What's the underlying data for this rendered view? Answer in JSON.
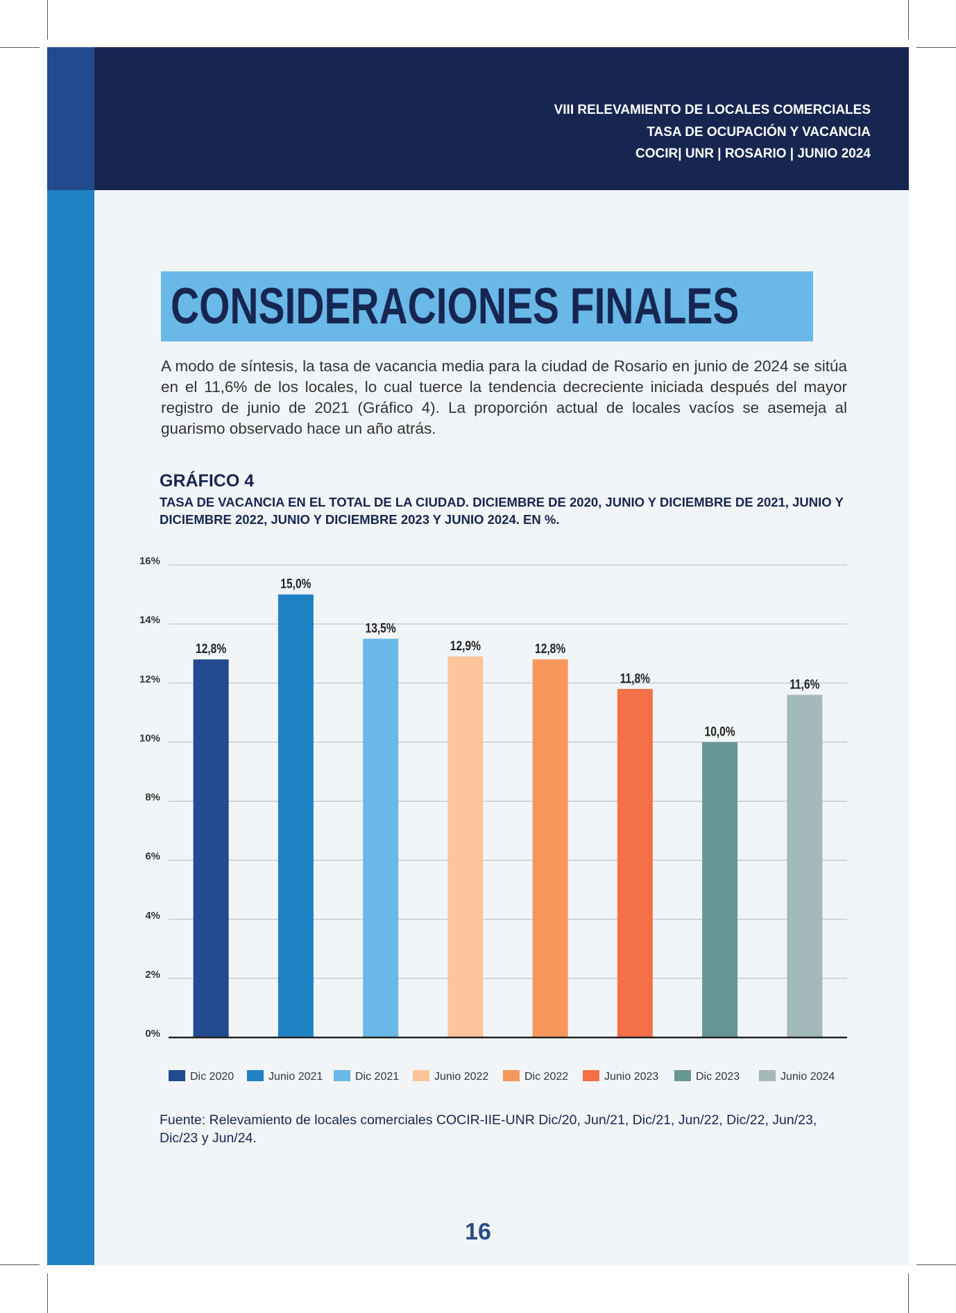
{
  "header": {
    "line1": "VIII RELEVAMIENTO DE LOCALES COMERCIALES",
    "line2": "TASA DE OCUPACIÓN Y VACANCIA",
    "line3": "COCIR| UNR | ROSARIO | JUNIO 2024"
  },
  "section_title": "CONSIDERACIONES FINALES",
  "intro_text": "A modo de síntesis, la tasa de vacancia media para la ciudad de Rosario en junio de 2024 se sitúa en el 11,6% de los locales, lo cual tuerce la tendencia decreciente iniciada después del mayor registro de junio de 2021 (Gráfico 4). La proporción actual de locales vacíos se asemeja al guarismo observado hace un año atrás.",
  "figure": {
    "label": "GRÁFICO 4",
    "subtitle": "TASA DE VACANCIA EN EL TOTAL DE LA CIUDAD. DICIEMBRE DE 2020, JUNIO Y DICIEMBRE DE 2021, JUNIO Y DICIEMBRE 2022, JUNIO Y DICIEMBRE 2023 Y JUNIO 2024. EN %."
  },
  "chart_data": {
    "type": "bar",
    "categories": [
      "Dic 2020",
      "Junio 2021",
      "Dic 2021",
      "Junio 2022",
      "Dic 2022",
      "Junio 2023",
      "Dic 2023",
      "Junio 2024"
    ],
    "values": [
      12.8,
      15.0,
      13.5,
      12.9,
      12.8,
      11.8,
      10.0,
      11.6
    ],
    "data_labels": [
      "12,8%",
      "15,0%",
      "13,5%",
      "12,9%",
      "12,8%",
      "11,8%",
      "10,0%",
      "11,6%"
    ],
    "colors": [
      "#224a8e",
      "#1f82c4",
      "#69b8e8",
      "#fec59c",
      "#f8975b",
      "#f47047",
      "#679795",
      "#a3b9ba"
    ],
    "ylim": [
      0,
      16
    ],
    "yticks": [
      0,
      2,
      4,
      6,
      8,
      10,
      12,
      14,
      16
    ],
    "ytick_labels": [
      "0%",
      "2%",
      "4%",
      "6%",
      "8%",
      "10%",
      "12%",
      "14%",
      "16%"
    ],
    "grid": true,
    "legend_position": "bottom"
  },
  "source_text": "Fuente: Relevamiento de locales comerciales COCIR-IIE-UNR Dic/20, Jun/21, Dic/21, Jun/22, Dic/22, Jun/23, Dic/23 y  Jun/24.",
  "page_number": "16"
}
